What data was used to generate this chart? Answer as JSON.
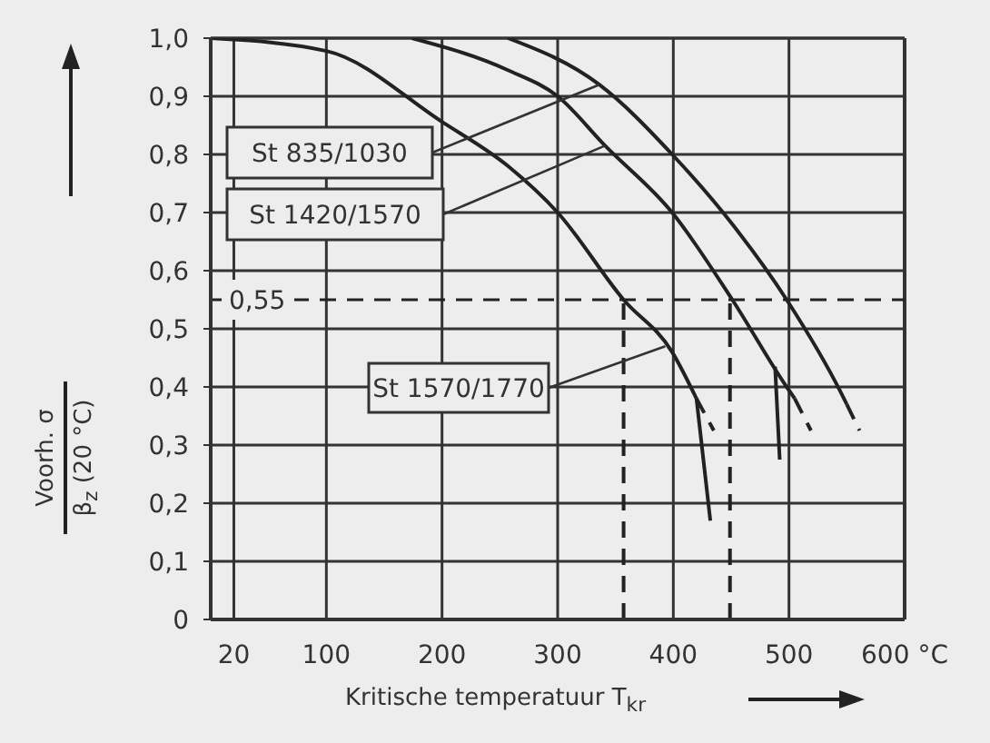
{
  "chart_data": {
    "type": "line",
    "xlabel": "Kritische temperatuur T$_{kr}$",
    "ylabel": "Voorh. σ\nβ$_{z}$ (20 °C)",
    "xlim": [
      0,
      600
    ],
    "xticks": [
      20,
      100,
      200,
      300,
      400,
      500,
      {
        "value": 600,
        "label": "600 °C"
      }
    ],
    "ylim": [
      0,
      1
    ],
    "yticks": [
      0,
      {
        "value": 0.1,
        "label": "0,1"
      },
      {
        "value": 0.2,
        "label": "0,2"
      },
      {
        "value": 0.3,
        "label": "0,3"
      },
      {
        "value": 0.4,
        "label": "0,4"
      },
      {
        "value": 0.5,
        "label": "0,5"
      },
      {
        "value": 0.6,
        "label": "0,6"
      },
      {
        "value": 0.7,
        "label": "0,7"
      },
      {
        "value": 0.8,
        "label": "0,8"
      },
      {
        "value": 0.9,
        "label": "0,9"
      },
      {
        "value": 1,
        "label": "1,0"
      }
    ],
    "grid": true,
    "marker": "none",
    "line_style": "solid",
    "series": [
      {
        "color": "#222222",
        "x": [
          0,
          100,
          200,
          257,
          300,
          357,
          399,
          420
        ],
        "values": [
          1.0,
          0.978,
          0.856,
          0.78,
          0.7,
          0.55,
          0.46,
          0.38
        ]
      },
      {
        "color": "#222222",
        "line_style": "dashed",
        "x": [
          420,
          435
        ],
        "values": [
          0.38,
          0.325
        ]
      },
      {
        "color": "#222222",
        "x": [
          420,
          432
        ],
        "values": [
          0.38,
          0.17
        ]
      },
      {
        "color": "#222222",
        "x": [
          174,
          257,
          300,
          341,
          399,
          451,
          498,
          505
        ],
        "values": [
          1.0,
          0.945,
          0.9,
          0.815,
          0.7,
          0.55,
          0.4,
          0.38
        ]
      },
      {
        "color": "#222222",
        "line_style": "dashed",
        "x": [
          505,
          519
        ],
        "values": [
          0.38,
          0.325
        ]
      },
      {
        "color": "#222222",
        "x": [
          488,
          492
        ],
        "values": [
          0.435,
          0.275
        ]
      },
      {
        "color": "#222222",
        "x": [
          257,
          336,
          399,
          451,
          498,
          545,
          550
        ],
        "values": [
          1.0,
          0.92,
          0.8,
          0.68,
          0.55,
          0.39,
          0.37
        ]
      },
      {
        "color": "#222222",
        "line_style": "dashed",
        "x": [
          550,
          561
        ],
        "values": [
          0.37,
          0.325
        ]
      },
      {
        "color": "#222222",
        "line_style": "dashed",
        "x": [
          357,
          357
        ],
        "values": [
          0,
          0.55
        ]
      },
      {
        "color": "#222222",
        "line_style": "dashed",
        "x": [
          449,
          449
        ],
        "values": [
          0,
          0.55
        ]
      }
    ],
    "ref_lines": [
      {
        "axis": "y",
        "value": 0.55,
        "label": "0,55",
        "color": "#222222",
        "line_style": "dashed"
      }
    ],
    "annotations": [
      {
        "text": "St 835/1030",
        "x": 336,
        "y": 0.92
      },
      {
        "text": "St 1420/1570",
        "x": 341,
        "y": 0.815
      },
      {
        "text": "St 1570/1770",
        "x": 393,
        "y": 0.47
      }
    ]
  }
}
